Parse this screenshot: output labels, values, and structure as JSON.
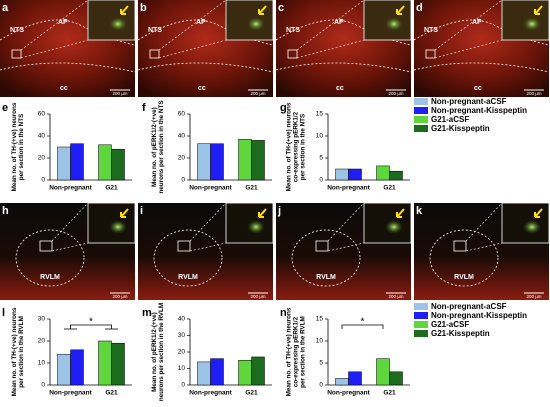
{
  "panels": [
    {
      "letter": "a",
      "labels": [
        "NTS",
        "AP",
        "cc"
      ],
      "scale": "200 µm"
    },
    {
      "letter": "b",
      "labels": [
        "NTS",
        "AP",
        "cc"
      ],
      "scale": "200 µm"
    },
    {
      "letter": "c",
      "labels": [
        "NTS",
        "AP",
        "cc"
      ],
      "scale": "200 µm"
    },
    {
      "letter": "d",
      "labels": [
        "NTS",
        "AP",
        "cc"
      ],
      "scale": "200 µm"
    },
    {
      "letter": "h",
      "labels": [
        "RVLM"
      ],
      "scale": "200 µm"
    },
    {
      "letter": "i",
      "labels": [
        "RVLM"
      ],
      "scale": "200 µm"
    },
    {
      "letter": "j",
      "labels": [
        "RVLM"
      ],
      "scale": "200 µm"
    },
    {
      "letter": "k",
      "labels": [
        "RVLM"
      ],
      "scale": "200 µm"
    }
  ],
  "chart_data": [
    {
      "type": "bar",
      "letter": "e",
      "ylabel": [
        "Mean no. of TH-(+ve) neurons",
        "per section in the NTS"
      ],
      "categories": [
        "Non-pregnant",
        "G21"
      ],
      "ylim": [
        0,
        60
      ],
      "yticks": [
        0,
        20,
        40,
        60
      ],
      "series": [
        {
          "name": "Non-pregnant-aCSF",
          "color": "#9dc3e6",
          "values": [
            30,
            null
          ]
        },
        {
          "name": "Non-pregnant-Kisspeptin",
          "color": "#1f1ff5",
          "values": [
            33,
            null
          ]
        },
        {
          "name": "G21-aCSF",
          "color": "#5fd63c",
          "values": [
            null,
            32
          ]
        },
        {
          "name": "G21-Kisspeptin",
          "color": "#1d6b1d",
          "values": [
            null,
            28
          ]
        }
      ]
    },
    {
      "type": "bar",
      "letter": "f",
      "ylabel": [
        "Mean no. of pERK1/2-(+ve)",
        "neurons per section in the NTS"
      ],
      "categories": [
        "Non-pregnant",
        "G21"
      ],
      "ylim": [
        0,
        60
      ],
      "yticks": [
        0,
        20,
        40,
        60
      ],
      "series": [
        {
          "name": "Non-pregnant-aCSF",
          "color": "#9dc3e6",
          "values": [
            33,
            null
          ]
        },
        {
          "name": "Non-pregnant-Kisspeptin",
          "color": "#1f1ff5",
          "values": [
            33,
            null
          ]
        },
        {
          "name": "G21-aCSF",
          "color": "#5fd63c",
          "values": [
            null,
            37
          ]
        },
        {
          "name": "G21-Kisspeptin",
          "color": "#1d6b1d",
          "values": [
            null,
            36
          ]
        }
      ]
    },
    {
      "type": "bar",
      "letter": "g",
      "ylabel": [
        "Mean no. of TH-(+ve) neurons",
        "co-expressing pERK1/2",
        "per section in the NTS"
      ],
      "categories": [
        "Non-pregnant",
        "G21"
      ],
      "ylim": [
        0,
        15
      ],
      "yticks": [
        0,
        5,
        10,
        15
      ],
      "series": [
        {
          "name": "Non-pregnant-aCSF",
          "color": "#9dc3e6",
          "values": [
            2.5,
            null
          ]
        },
        {
          "name": "Non-pregnant-Kisspeptin",
          "color": "#1f1ff5",
          "values": [
            2.5,
            null
          ]
        },
        {
          "name": "G21-aCSF",
          "color": "#5fd63c",
          "values": [
            null,
            3.2
          ]
        },
        {
          "name": "G21-Kisspeptin",
          "color": "#1d6b1d",
          "values": [
            null,
            2
          ]
        }
      ]
    },
    {
      "type": "bar",
      "letter": "l",
      "ylabel": [
        "Mean no. of TH-(+ve) neurons",
        "per section in the RVLM"
      ],
      "categories": [
        "Non-pregnant",
        "G21"
      ],
      "ylim": [
        0,
        30
      ],
      "yticks": [
        0,
        10,
        20,
        30
      ],
      "significance": "*",
      "series": [
        {
          "name": "Non-pregnant-aCSF",
          "color": "#9dc3e6",
          "values": [
            14,
            null
          ]
        },
        {
          "name": "Non-pregnant-Kisspeptin",
          "color": "#1f1ff5",
          "values": [
            16,
            null
          ]
        },
        {
          "name": "G21-aCSF",
          "color": "#5fd63c",
          "values": [
            null,
            20
          ]
        },
        {
          "name": "G21-Kisspeptin",
          "color": "#1d6b1d",
          "values": [
            null,
            19
          ]
        }
      ]
    },
    {
      "type": "bar",
      "letter": "m",
      "ylabel": [
        "Mean no. of pERK1/2-(+ve)",
        "neurons per section in the RVLM"
      ],
      "categories": [
        "Non-pregnant",
        "G21"
      ],
      "ylim": [
        0,
        40
      ],
      "yticks": [
        0,
        10,
        20,
        30,
        40
      ],
      "series": [
        {
          "name": "Non-pregnant-aCSF",
          "color": "#9dc3e6",
          "values": [
            14,
            null
          ]
        },
        {
          "name": "Non-pregnant-Kisspeptin",
          "color": "#1f1ff5",
          "values": [
            16,
            null
          ]
        },
        {
          "name": "G21-aCSF",
          "color": "#5fd63c",
          "values": [
            null,
            15
          ]
        },
        {
          "name": "G21-Kisspeptin",
          "color": "#1d6b1d",
          "values": [
            null,
            17
          ]
        }
      ]
    },
    {
      "type": "bar",
      "letter": "n",
      "ylabel": [
        "Mean no. of TH-(+ve) neurons",
        "co-expressing pERK1/2",
        "per section in the RVLM"
      ],
      "categories": [
        "Non-pregnant",
        "G21"
      ],
      "ylim": [
        0,
        15
      ],
      "yticks": [
        0,
        5,
        10,
        15
      ],
      "significance": "*",
      "series": [
        {
          "name": "Non-pregnant-aCSF",
          "color": "#9dc3e6",
          "values": [
            1.5,
            null
          ]
        },
        {
          "name": "Non-pregnant-Kisspeptin",
          "color": "#1f1ff5",
          "values": [
            3,
            null
          ]
        },
        {
          "name": "G21-aCSF",
          "color": "#5fd63c",
          "values": [
            null,
            6
          ]
        },
        {
          "name": "G21-Kisspeptin",
          "color": "#1d6b1d",
          "values": [
            null,
            3
          ]
        }
      ]
    }
  ]
}
